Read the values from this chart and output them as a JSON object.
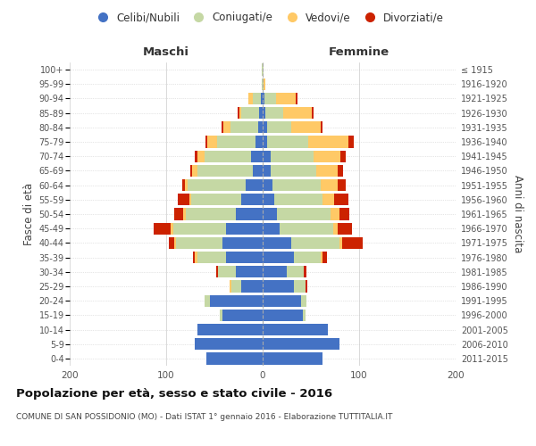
{
  "age_groups": [
    "0-4",
    "5-9",
    "10-14",
    "15-19",
    "20-24",
    "25-29",
    "30-34",
    "35-39",
    "40-44",
    "45-49",
    "50-54",
    "55-59",
    "60-64",
    "65-69",
    "70-74",
    "75-79",
    "80-84",
    "85-89",
    "90-94",
    "95-99",
    "100+"
  ],
  "birth_years": [
    "2011-2015",
    "2006-2010",
    "2001-2005",
    "1996-2000",
    "1991-1995",
    "1986-1990",
    "1981-1985",
    "1976-1980",
    "1971-1975",
    "1966-1970",
    "1961-1965",
    "1956-1960",
    "1951-1955",
    "1946-1950",
    "1941-1945",
    "1936-1940",
    "1931-1935",
    "1926-1930",
    "1921-1925",
    "1916-1920",
    "≤ 1915"
  ],
  "maschi_celibi": [
    58,
    70,
    68,
    42,
    55,
    22,
    28,
    38,
    42,
    38,
    28,
    22,
    18,
    10,
    12,
    7,
    5,
    4,
    2,
    0,
    0
  ],
  "maschi_coniugati": [
    0,
    0,
    0,
    2,
    5,
    10,
    18,
    30,
    48,
    55,
    52,
    52,
    60,
    58,
    48,
    40,
    28,
    18,
    8,
    1,
    1
  ],
  "maschi_vedovi": [
    0,
    0,
    0,
    0,
    0,
    2,
    0,
    2,
    2,
    2,
    2,
    2,
    3,
    5,
    8,
    10,
    8,
    2,
    5,
    0,
    0
  ],
  "maschi_divorziati": [
    0,
    0,
    0,
    0,
    0,
    0,
    2,
    2,
    5,
    18,
    10,
    12,
    2,
    2,
    2,
    2,
    2,
    2,
    0,
    0,
    0
  ],
  "femmine_nubili": [
    62,
    80,
    68,
    42,
    40,
    32,
    25,
    32,
    30,
    18,
    15,
    12,
    10,
    8,
    8,
    5,
    5,
    3,
    2,
    0,
    0
  ],
  "femmine_coniugate": [
    0,
    0,
    0,
    2,
    5,
    12,
    18,
    28,
    50,
    55,
    55,
    50,
    50,
    48,
    45,
    42,
    25,
    18,
    12,
    1,
    1
  ],
  "femmine_vedove": [
    0,
    0,
    0,
    0,
    0,
    0,
    0,
    2,
    2,
    5,
    10,
    12,
    18,
    22,
    28,
    42,
    30,
    30,
    20,
    2,
    0
  ],
  "femmine_divorziate": [
    0,
    0,
    0,
    0,
    0,
    2,
    2,
    5,
    22,
    15,
    10,
    15,
    8,
    5,
    5,
    5,
    2,
    2,
    2,
    0,
    0
  ],
  "colors": {
    "celibi": "#4472c4",
    "coniugati": "#c5d8a4",
    "vedovi": "#ffc966",
    "divorziati": "#cc2200"
  },
  "title": "Popolazione per età, sesso e stato civile - 2016",
  "subtitle": "COMUNE DI SAN POSSIDONIO (MO) - Dati ISTAT 1° gennaio 2016 - Elaborazione TUTTITALIA.IT",
  "xlabel_left": "Maschi",
  "xlabel_right": "Femmine",
  "ylabel_left": "Fasce di età",
  "ylabel_right": "Anni di nascita",
  "xlim": 200,
  "background_color": "#ffffff",
  "grid_color": "#cccccc",
  "legend_labels": [
    "Celibi/Nubili",
    "Coniugati/e",
    "Vedovi/e",
    "Divorziati/e"
  ]
}
